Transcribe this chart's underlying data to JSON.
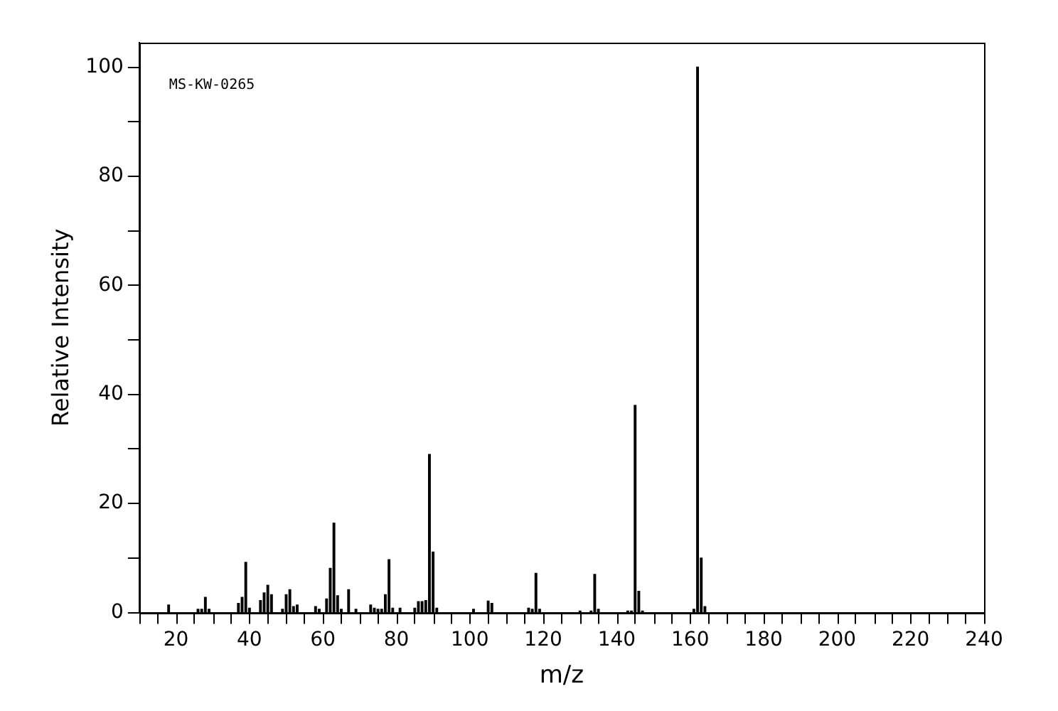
{
  "chart_data": {
    "type": "bar",
    "xlabel": "m/z",
    "ylabel": "Relative Intensity",
    "annotations": [
      "MS-KW-0265"
    ],
    "color": "#000000",
    "x": [
      18,
      26,
      27,
      28,
      29,
      37,
      38,
      39,
      40,
      43,
      44,
      45,
      46,
      49,
      50,
      51,
      52,
      53,
      58,
      59,
      61,
      62,
      63,
      64,
      65,
      67,
      69,
      73,
      74,
      75,
      76,
      77,
      78,
      79,
      81,
      85,
      86,
      87,
      88,
      89,
      90,
      91,
      101,
      105,
      106,
      116,
      117,
      118,
      119,
      130,
      133,
      134,
      135,
      143,
      144,
      145,
      146,
      147,
      161,
      162,
      163,
      164
    ],
    "values": [
      1.4,
      0.6,
      0.6,
      2.8,
      0.6,
      1.7,
      2.8,
      9.2,
      0.8,
      2.2,
      3.6,
      5.0,
      3.3,
      0.6,
      3.3,
      4.2,
      1.1,
      1.4,
      1.1,
      0.6,
      2.5,
      8.1,
      16.4,
      3.1,
      0.6,
      4.2,
      0.6,
      1.4,
      0.8,
      0.6,
      0.6,
      3.3,
      9.7,
      0.8,
      0.8,
      0.8,
      2.0,
      2.0,
      2.2,
      29,
      11.1,
      0.8,
      0.6,
      2.1,
      1.7,
      0.8,
      0.6,
      7.2,
      0.6,
      0.3,
      0.3,
      7.0,
      0.6,
      0.3,
      0.3,
      38,
      3.9,
      0.3,
      0.6,
      100,
      10.0,
      1.1
    ],
    "xlim": [
      10,
      240
    ],
    "xticks": [
      {
        "value": 10,
        "label": null
      },
      20,
      {
        "value": 30,
        "label": null
      },
      40,
      {
        "value": 50,
        "label": null
      },
      60,
      {
        "value": 70,
        "label": null
      },
      80,
      {
        "value": 90,
        "label": null
      },
      100,
      {
        "value": 110,
        "label": null
      },
      120,
      {
        "value": 130,
        "label": null
      },
      140,
      {
        "value": 150,
        "label": null
      },
      160,
      {
        "value": 170,
        "label": null
      },
      180,
      {
        "value": 190,
        "label": null
      },
      200,
      {
        "value": 210,
        "label": null
      },
      220,
      {
        "value": 230,
        "label": null
      },
      240
    ],
    "ylim": [
      0,
      104.5
    ],
    "yticks": [
      0,
      {
        "value": 10,
        "label": null
      },
      20,
      {
        "value": 30,
        "label": null
      },
      40,
      {
        "value": 50,
        "label": null
      },
      60,
      {
        "value": 70,
        "label": null
      },
      80,
      {
        "value": 90,
        "label": null
      },
      100
    ],
    "grid": false,
    "legend": false
  }
}
